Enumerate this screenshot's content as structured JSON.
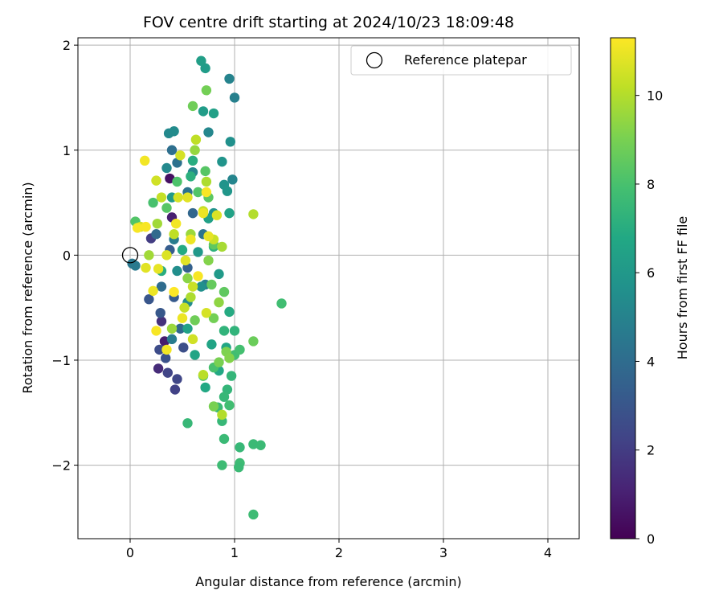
{
  "chart_data": {
    "type": "scatter",
    "title": "FOV centre drift starting at 2024/10/23 18:09:48",
    "xlabel": "Angular distance from reference (arcmin)",
    "ylabel": "Rotation from reference (arcmin)",
    "xlim": [
      -0.5,
      4.3
    ],
    "ylim": [
      -2.7,
      2.07
    ],
    "x_ticks": [
      0,
      1,
      2,
      3,
      4
    ],
    "y_ticks": [
      -2,
      -1,
      0,
      1,
      2
    ],
    "x_tick_labels": [
      "0",
      "1",
      "2",
      "3",
      "4"
    ],
    "y_tick_labels": [
      "−2",
      "−1",
      "0",
      "1",
      "2"
    ],
    "grid": true,
    "legend": {
      "placement": "top-right",
      "entries": [
        "Reference platepar"
      ]
    },
    "reference_point": {
      "name": "Reference platepar",
      "x": 0,
      "y": 0
    },
    "colorbar": {
      "label": "Hours from first FF file",
      "colormap": "viridis",
      "range": [
        0,
        11.3
      ],
      "ticks": [
        0,
        2,
        4,
        6,
        8,
        10
      ],
      "tick_labels": [
        "0",
        "2",
        "4",
        "6",
        "8",
        "10"
      ]
    },
    "points": [
      [
        0.38,
        0.73,
        0.5
      ],
      [
        0.4,
        0.36,
        1.0
      ],
      [
        0.33,
        -0.82,
        0.9
      ],
      [
        0.27,
        -1.08,
        1.4
      ],
      [
        0.3,
        -0.63,
        1.6
      ],
      [
        0.2,
        0.16,
        2.0
      ],
      [
        0.36,
        -1.12,
        2.3
      ],
      [
        0.43,
        -1.28,
        2.2
      ],
      [
        0.45,
        -1.18,
        2.4
      ],
      [
        0.28,
        -0.9,
        2.6
      ],
      [
        0.34,
        -0.98,
        2.8
      ],
      [
        0.51,
        -0.88,
        2.7
      ],
      [
        0.18,
        -0.42,
        3.0
      ],
      [
        0.29,
        -0.55,
        3.1
      ],
      [
        0.42,
        -0.4,
        3.2
      ],
      [
        0.38,
        0.05,
        3.3
      ],
      [
        0.55,
        -0.12,
        3.5
      ],
      [
        0.6,
        0.4,
        3.7
      ],
      [
        0.48,
        -0.7,
        3.8
      ],
      [
        0.25,
        0.2,
        3.9
      ],
      [
        0.3,
        -0.3,
        4.0
      ],
      [
        0.4,
        1.0,
        4.1
      ],
      [
        0.45,
        0.88,
        4.2
      ],
      [
        0.55,
        0.6,
        4.3
      ],
      [
        0.7,
        0.2,
        4.4
      ],
      [
        0.02,
        -0.08,
        4.5
      ],
      [
        0.05,
        -0.1,
        4.6
      ],
      [
        0.4,
        -0.8,
        4.7
      ],
      [
        0.42,
        0.15,
        4.7
      ],
      [
        0.72,
        -0.28,
        4.8
      ],
      [
        1.0,
        1.5,
        4.9
      ],
      [
        0.95,
        1.68,
        5.0
      ],
      [
        0.98,
        0.72,
        5.1
      ],
      [
        0.75,
        1.17,
        5.2
      ],
      [
        0.6,
        0.79,
        5.2
      ],
      [
        0.37,
        1.16,
        5.3
      ],
      [
        0.42,
        1.18,
        5.4
      ],
      [
        0.35,
        0.83,
        5.3
      ],
      [
        0.55,
        -0.45,
        5.4
      ],
      [
        0.68,
        -0.3,
        5.6
      ],
      [
        0.45,
        -0.15,
        5.5
      ],
      [
        0.8,
        0.4,
        5.7
      ],
      [
        0.9,
        0.67,
        5.8
      ],
      [
        0.88,
        0.89,
        5.8
      ],
      [
        0.93,
        0.61,
        5.9
      ],
      [
        0.65,
        0.03,
        6.0
      ],
      [
        0.85,
        -0.18,
        6.1
      ],
      [
        0.4,
        0.55,
        6.1
      ],
      [
        0.72,
        1.78,
        6.2
      ],
      [
        0.68,
        1.85,
        6.3
      ],
      [
        0.7,
        1.37,
        6.2
      ],
      [
        0.8,
        1.35,
        6.4
      ],
      [
        0.95,
        0.4,
        6.5
      ],
      [
        0.75,
        0.35,
        6.4
      ],
      [
        0.55,
        -0.7,
        6.5
      ],
      [
        0.62,
        -0.95,
        6.6
      ],
      [
        0.78,
        -0.85,
        6.6
      ],
      [
        0.92,
        -0.88,
        6.7
      ],
      [
        0.72,
        -1.26,
        6.8
      ],
      [
        0.85,
        -1.1,
        6.8
      ],
      [
        0.95,
        -0.54,
        6.9
      ],
      [
        0.5,
        0.05,
        6.9
      ],
      [
        0.3,
        -0.15,
        7.0
      ],
      [
        0.6,
        0.9,
        7.0
      ],
      [
        0.58,
        0.75,
        7.1
      ],
      [
        0.96,
        1.08,
        5.6
      ],
      [
        0.8,
        0.08,
        7.2
      ],
      [
        0.9,
        -0.72,
        7.3
      ],
      [
        1.0,
        -0.72,
        7.3
      ],
      [
        0.97,
        -1.15,
        7.4
      ],
      [
        0.93,
        -1.28,
        7.4
      ],
      [
        0.9,
        -1.35,
        7.5
      ],
      [
        0.88,
        -1.58,
        7.5
      ],
      [
        0.84,
        -1.45,
        7.6
      ],
      [
        0.55,
        -1.6,
        7.5
      ],
      [
        0.9,
        -1.75,
        7.6
      ],
      [
        0.88,
        -2.0,
        7.7
      ],
      [
        1.05,
        -1.98,
        7.7
      ],
      [
        1.04,
        -2.02,
        7.6
      ],
      [
        1.05,
        -1.83,
        7.5
      ],
      [
        1.18,
        -1.8,
        7.6
      ],
      [
        1.25,
        -1.81,
        7.6
      ],
      [
        1.18,
        -2.47,
        7.7
      ],
      [
        1.45,
        -0.46,
        7.8
      ],
      [
        1.0,
        -0.95,
        7.8
      ],
      [
        1.05,
        -0.9,
        7.9
      ],
      [
        0.95,
        -1.43,
        7.8
      ],
      [
        0.7,
        -1.15,
        7.9
      ],
      [
        0.8,
        -1.07,
        8.0
      ],
      [
        0.22,
        0.5,
        8.0
      ],
      [
        0.05,
        0.32,
        8.2
      ],
      [
        0.35,
        0.45,
        8.3
      ],
      [
        0.45,
        0.7,
        8.1
      ],
      [
        0.65,
        0.6,
        8.2
      ],
      [
        0.72,
        0.8,
        8.3
      ],
      [
        0.75,
        0.55,
        8.4
      ],
      [
        0.8,
        0.1,
        8.5
      ],
      [
        0.78,
        -0.28,
        8.6
      ],
      [
        1.18,
        -0.82,
        8.7
      ],
      [
        0.9,
        -0.35,
        8.5
      ],
      [
        0.6,
        1.42,
        8.8
      ],
      [
        0.73,
        1.57,
        8.9
      ],
      [
        0.62,
        -0.62,
        8.8
      ],
      [
        0.8,
        -0.6,
        8.9
      ],
      [
        0.85,
        -1.02,
        9.0
      ],
      [
        0.8,
        -1.44,
        9.0
      ],
      [
        0.92,
        -0.92,
        9.1
      ],
      [
        0.95,
        -0.98,
        9.2
      ],
      [
        0.75,
        -0.05,
        9.2
      ],
      [
        0.55,
        -0.22,
        9.3
      ],
      [
        0.85,
        -0.45,
        9.4
      ],
      [
        0.62,
        1.0,
        9.5
      ],
      [
        0.4,
        -0.7,
        9.6
      ],
      [
        0.58,
        0.2,
        9.6
      ],
      [
        0.26,
        0.3,
        9.7
      ],
      [
        0.18,
        0.0,
        9.7
      ],
      [
        0.88,
        0.08,
        9.8
      ],
      [
        0.73,
        0.7,
        9.9
      ],
      [
        0.58,
        -0.4,
        9.9
      ],
      [
        1.18,
        0.39,
        10.0
      ],
      [
        0.88,
        -1.52,
        10.0
      ],
      [
        0.7,
        -1.14,
        10.1
      ],
      [
        0.63,
        1.1,
        10.2
      ],
      [
        0.42,
        0.2,
        10.2
      ],
      [
        0.7,
        0.42,
        10.3
      ],
      [
        0.8,
        0.15,
        10.4
      ],
      [
        0.52,
        -0.5,
        10.3
      ],
      [
        0.25,
        0.71,
        10.5
      ],
      [
        0.1,
        0.27,
        10.5
      ],
      [
        0.48,
        0.95,
        10.6
      ],
      [
        0.6,
        -0.3,
        10.4
      ],
      [
        0.15,
        -0.12,
        10.8
      ],
      [
        0.27,
        -0.13,
        10.9
      ],
      [
        0.22,
        -0.34,
        11.0
      ],
      [
        0.14,
        0.9,
        11.1
      ],
      [
        0.07,
        0.26,
        11.2
      ],
      [
        0.15,
        0.27,
        11.2
      ],
      [
        0.5,
        -0.6,
        11.0
      ],
      [
        0.35,
        -0.9,
        11.1
      ],
      [
        0.25,
        -0.72,
        11.2
      ],
      [
        0.73,
        0.6,
        11.2
      ],
      [
        0.7,
        0.4,
        11.0
      ],
      [
        0.75,
        0.18,
        10.9
      ],
      [
        0.83,
        0.38,
        10.7
      ],
      [
        0.35,
        0.0,
        10.7
      ],
      [
        0.44,
        0.3,
        11.1
      ],
      [
        0.53,
        -0.05,
        10.8
      ],
      [
        0.73,
        -0.55,
        10.6
      ],
      [
        0.6,
        -0.8,
        10.5
      ],
      [
        0.3,
        0.55,
        10.3
      ],
      [
        0.46,
        0.55,
        10.6
      ],
      [
        0.55,
        0.55,
        10.8
      ],
      [
        0.58,
        0.15,
        11.0
      ],
      [
        0.65,
        -0.2,
        11.2
      ],
      [
        0.42,
        -0.35,
        11.3
      ]
    ]
  }
}
